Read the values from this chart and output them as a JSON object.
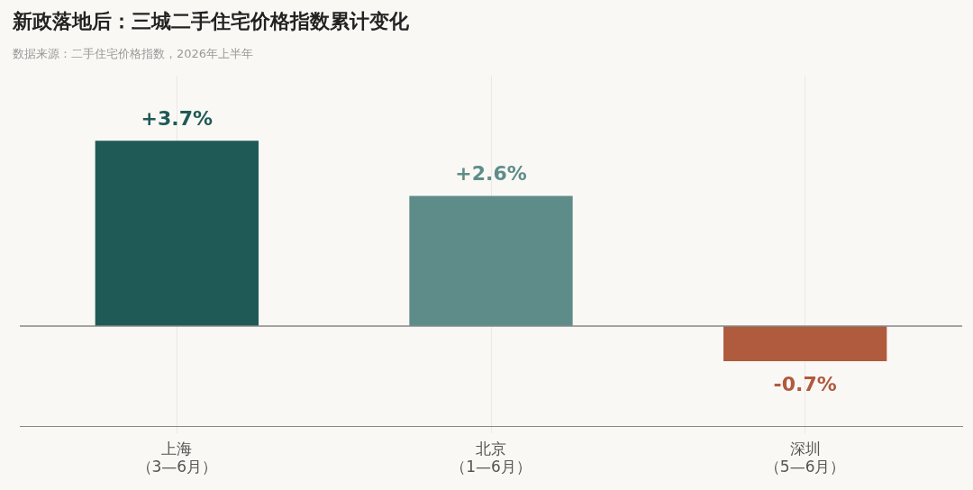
{
  "chart_data": {
    "type": "bar",
    "title": "新政落地后：三城二手住宅价格指数累计变化",
    "subtitle": "数据来源：二手住宅价格指数，2026年上半年",
    "categories": [
      "上海（3—6月）",
      "北京（1—6月）",
      "深圳（5—6月）"
    ],
    "values": [
      3.7,
      2.6,
      -0.7
    ],
    "colors": [
      "#1f5a56",
      "#5e8d89",
      "#b05a3e"
    ],
    "value_labels": [
      "+3.7%",
      "+2.6%",
      "-0.7%"
    ],
    "ylim": [
      -2,
      5
    ],
    "tick_labels": "x",
    "grid": "x",
    "ref_lines": [
      {
        "axis": "y",
        "value": 0,
        "color": "#888888"
      }
    ],
    "legend": false
  }
}
